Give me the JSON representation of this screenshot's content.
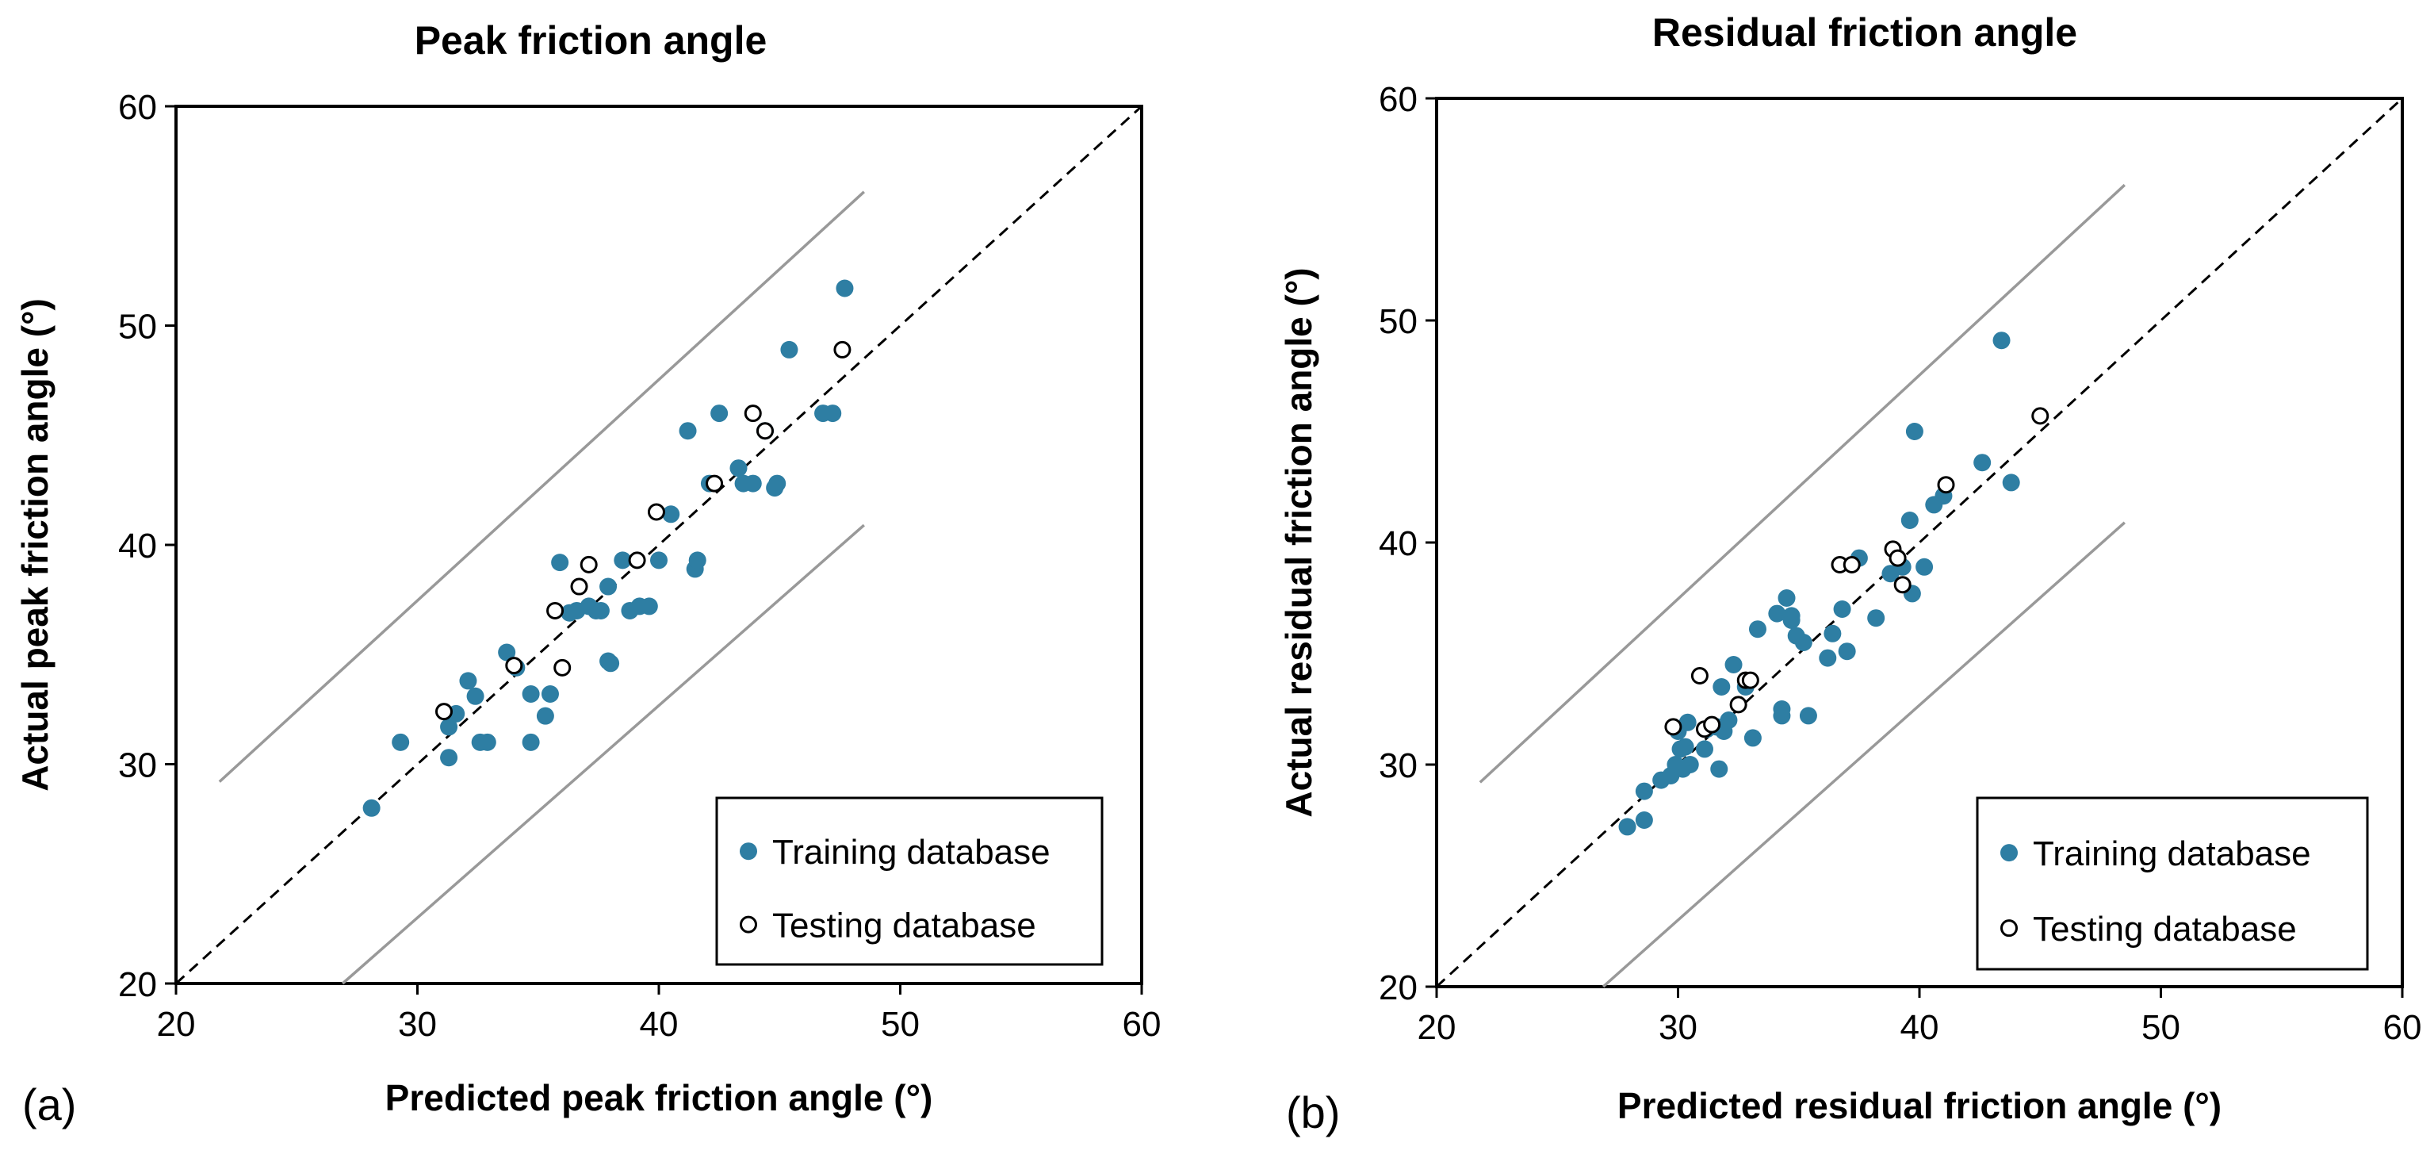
{
  "chart_data": [
    {
      "type": "scatter",
      "panel_label": "(a)",
      "title": "Peak friction angle",
      "xlabel": "Predicted peak friction angle (°)",
      "ylabel": "Actual peak friction angle (°)",
      "xlim": [
        20,
        60
      ],
      "ylim": [
        20,
        60
      ],
      "xticks": [
        20,
        30,
        40,
        50,
        60
      ],
      "yticks": [
        20,
        30,
        40,
        50,
        60
      ],
      "colors": {
        "training": "#2e7ea3",
        "testing_fill": "#ffffff",
        "testing_stroke": "#000000",
        "bounds": "#999999",
        "identity": "#000000"
      },
      "reference_lines": {
        "identity": [
          [
            20,
            20
          ],
          [
            60,
            60
          ]
        ],
        "upper_bound": [
          [
            21.8,
            29.2
          ],
          [
            48.5,
            56.1
          ]
        ],
        "lower_bound": [
          [
            26.9,
            20
          ],
          [
            48.5,
            40.9
          ]
        ]
      },
      "legend": {
        "position": "bottom-right",
        "entries": [
          "Training database",
          "Testing database"
        ]
      },
      "series": [
        {
          "name": "Training database",
          "points": [
            [
              28.1,
              28.0
            ],
            [
              29.3,
              31.0
            ],
            [
              31.3,
              31.7
            ],
            [
              31.3,
              30.3
            ],
            [
              31.6,
              32.3
            ],
            [
              32.1,
              33.8
            ],
            [
              32.4,
              33.1
            ],
            [
              32.6,
              31.0
            ],
            [
              32.9,
              31.0
            ],
            [
              33.7,
              35.1
            ],
            [
              34.1,
              34.4
            ],
            [
              34.7,
              33.2
            ],
            [
              34.7,
              31.0
            ],
            [
              35.3,
              32.2
            ],
            [
              35.5,
              33.2
            ],
            [
              35.9,
              39.2
            ],
            [
              36.3,
              36.9
            ],
            [
              36.6,
              37.0
            ],
            [
              37.1,
              37.2
            ],
            [
              37.4,
              37.0
            ],
            [
              37.6,
              37.0
            ],
            [
              37.9,
              34.7
            ],
            [
              38.0,
              34.6
            ],
            [
              37.9,
              38.1
            ],
            [
              38.5,
              39.3
            ],
            [
              38.8,
              37.0
            ],
            [
              39.2,
              37.2
            ],
            [
              39.6,
              37.2
            ],
            [
              40.0,
              39.3
            ],
            [
              40.5,
              41.4
            ],
            [
              41.2,
              45.2
            ],
            [
              41.5,
              38.9
            ],
            [
              41.6,
              39.3
            ],
            [
              42.1,
              42.8
            ],
            [
              42.5,
              46.0
            ],
            [
              43.3,
              43.5
            ],
            [
              43.5,
              42.8
            ],
            [
              43.9,
              42.8
            ],
            [
              44.4,
              45.2
            ],
            [
              44.8,
              42.6
            ],
            [
              44.9,
              42.8
            ],
            [
              45.4,
              48.9
            ],
            [
              46.8,
              46.0
            ],
            [
              47.2,
              46.0
            ],
            [
              47.7,
              51.7
            ]
          ]
        },
        {
          "name": "Testing database",
          "points": [
            [
              31.1,
              32.4
            ],
            [
              34.0,
              34.5
            ],
            [
              35.7,
              37.0
            ],
            [
              36.0,
              34.4
            ],
            [
              36.7,
              38.1
            ],
            [
              37.1,
              39.1
            ],
            [
              39.1,
              39.3
            ],
            [
              39.9,
              41.5
            ],
            [
              42.3,
              42.8
            ],
            [
              43.9,
              46.0
            ],
            [
              44.4,
              45.2
            ],
            [
              47.6,
              48.9
            ]
          ]
        }
      ]
    },
    {
      "type": "scatter",
      "panel_label": "(b)",
      "title": "Residual friction angle",
      "xlabel": "Predicted residual friction angle (°)",
      "ylabel": "Actual residual friction angle (°)",
      "xlim": [
        20,
        60
      ],
      "ylim": [
        20,
        60
      ],
      "xticks": [
        20,
        30,
        40,
        50,
        60
      ],
      "yticks": [
        20,
        30,
        40,
        50,
        60
      ],
      "colors": {
        "training": "#2e7ea3",
        "testing_fill": "#ffffff",
        "testing_stroke": "#000000",
        "bounds": "#999999",
        "identity": "#000000"
      },
      "reference_lines": {
        "identity": [
          [
            20,
            20
          ],
          [
            60,
            60
          ]
        ],
        "upper_bound": [
          [
            21.8,
            29.2
          ],
          [
            48.5,
            56.1
          ]
        ],
        "lower_bound": [
          [
            26.9,
            20
          ],
          [
            48.5,
            40.9
          ]
        ]
      },
      "legend": {
        "position": "bottom-right",
        "entries": [
          "Training database",
          "Testing database"
        ]
      },
      "series": [
        {
          "name": "Training database",
          "points": [
            [
              27.9,
              27.2
            ],
            [
              28.6,
              27.5
            ],
            [
              28.6,
              28.8
            ],
            [
              29.3,
              29.3
            ],
            [
              29.7,
              29.5
            ],
            [
              29.9,
              30.0
            ],
            [
              30.0,
              31.5
            ],
            [
              30.1,
              30.7
            ],
            [
              30.2,
              29.8
            ],
            [
              30.3,
              30.8
            ],
            [
              30.4,
              31.9
            ],
            [
              30.5,
              30.0
            ],
            [
              31.1,
              30.7
            ],
            [
              31.2,
              31.6
            ],
            [
              31.6,
              31.7
            ],
            [
              31.7,
              29.8
            ],
            [
              31.8,
              33.5
            ],
            [
              31.9,
              31.5
            ],
            [
              32.1,
              32.0
            ],
            [
              32.3,
              34.5
            ],
            [
              32.8,
              33.5
            ],
            [
              33.1,
              31.2
            ],
            [
              33.3,
              36.1
            ],
            [
              34.1,
              36.8
            ],
            [
              34.3,
              32.5
            ],
            [
              34.3,
              32.2
            ],
            [
              34.5,
              37.5
            ],
            [
              34.7,
              36.7
            ],
            [
              34.7,
              36.5
            ],
            [
              34.9,
              35.8
            ],
            [
              35.2,
              35.5
            ],
            [
              35.4,
              32.2
            ],
            [
              36.2,
              34.8
            ],
            [
              36.4,
              35.9
            ],
            [
              36.8,
              37.0
            ],
            [
              37.0,
              35.1
            ],
            [
              37.5,
              39.3
            ],
            [
              38.2,
              36.6
            ],
            [
              38.8,
              38.6
            ],
            [
              39.3,
              38.9
            ],
            [
              39.6,
              41.0
            ],
            [
              39.7,
              37.7
            ],
            [
              39.8,
              45.0
            ],
            [
              40.2,
              38.9
            ],
            [
              40.6,
              41.7
            ],
            [
              41.0,
              42.1
            ],
            [
              42.6,
              43.6
            ],
            [
              43.4,
              49.1
            ],
            [
              43.8,
              42.7
            ]
          ]
        },
        {
          "name": "Testing database",
          "points": [
            [
              29.8,
              31.7
            ],
            [
              30.9,
              34.0
            ],
            [
              31.1,
              31.6
            ],
            [
              31.4,
              31.8
            ],
            [
              32.5,
              32.7
            ],
            [
              32.8,
              33.8
            ],
            [
              33.0,
              33.8
            ],
            [
              36.7,
              39.0
            ],
            [
              37.2,
              39.0
            ],
            [
              38.9,
              39.7
            ],
            [
              39.1,
              39.3
            ],
            [
              39.3,
              38.1
            ],
            [
              41.1,
              42.6
            ],
            [
              45.0,
              45.7
            ]
          ]
        }
      ]
    }
  ]
}
